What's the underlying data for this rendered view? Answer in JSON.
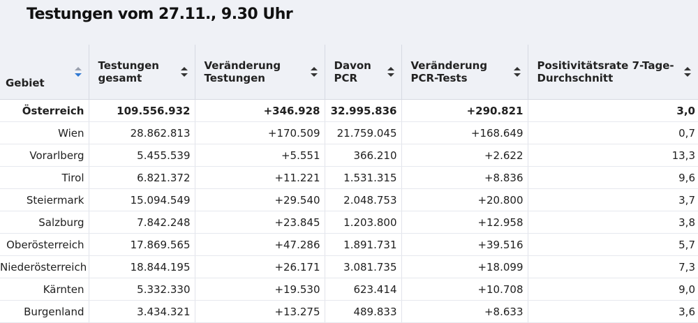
{
  "title": "Testungen vom 27.11., 9.30 Uhr",
  "columns": [
    {
      "label": "Gebiet",
      "sort": "descending"
    },
    {
      "label": "Testungen gesamt",
      "sort": "none"
    },
    {
      "label": "Veränderung Testungen",
      "sort": "none"
    },
    {
      "label": "Davon PCR",
      "sort": "none"
    },
    {
      "label": "Veränderung PCR-Tests",
      "sort": "none"
    },
    {
      "label": "Positivitätsrate 7-Tage-Durchschnitt",
      "sort": "none"
    }
  ],
  "rows": [
    [
      "Österreich",
      "109.556.932",
      "+346.928",
      "32.995.836",
      "+290.821",
      "3,0"
    ],
    [
      "Wien",
      "28.862.813",
      "+170.509",
      "21.759.045",
      "+168.649",
      "0,7"
    ],
    [
      "Vorarlberg",
      "5.455.539",
      "+5.551",
      "366.210",
      "+2.622",
      "13,3"
    ],
    [
      "Tirol",
      "6.821.372",
      "+11.221",
      "1.531.315",
      "+8.836",
      "9,6"
    ],
    [
      "Steiermark",
      "15.094.549",
      "+29.540",
      "2.048.753",
      "+20.800",
      "3,7"
    ],
    [
      "Salzburg",
      "7.842.248",
      "+23.845",
      "1.203.800",
      "+12.958",
      "3,8"
    ],
    [
      "Oberösterreich",
      "17.869.565",
      "+47.286",
      "1.891.731",
      "+39.516",
      "5,7"
    ],
    [
      "Niederösterreich",
      "18.844.195",
      "+26.171",
      "3.081.735",
      "+18.099",
      "7,3"
    ],
    [
      "Kärnten",
      "5.332.330",
      "+19.530",
      "623.414",
      "+10.708",
      "9,0"
    ],
    [
      "Burgenland",
      "3.434.321",
      "+13.275",
      "489.833",
      "+8.633",
      "3,6"
    ]
  ]
}
